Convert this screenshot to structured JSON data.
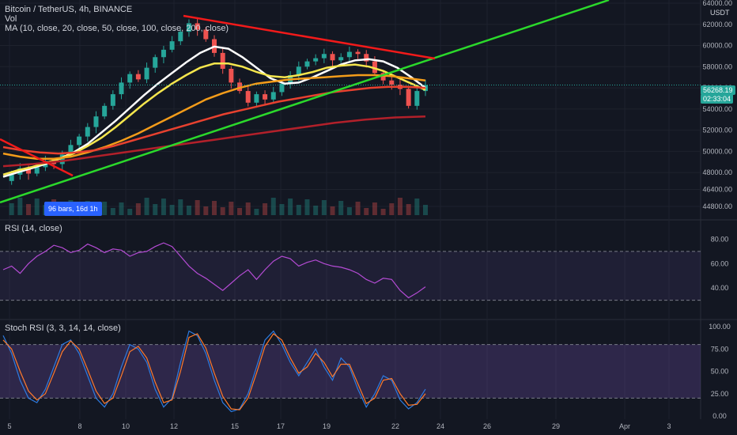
{
  "legend": {
    "title": "Bitcoin / TetherUS, 4h, BINANCE",
    "vol": "Vol",
    "ma": "MA (10, close, 20, close, 50, close, 100, close, 200, close)",
    "rsi": "RSI (14, close)",
    "stoch": "Stoch RSI (3, 3, 14, 14, close)"
  },
  "currency": "USDT",
  "current_price": "56268.19",
  "countdown": "02:33:04",
  "range_badge": "96 bars, 16d 1h",
  "colors": {
    "background": "#131722",
    "candle_up": "#26a69a",
    "candle_down": "#ef5350",
    "ma10": "#ffffff",
    "ma20": "#f5e64d",
    "ma50": "#f39c1a",
    "ma100": "#e8412f",
    "ma200": "#b2202a",
    "trend_green": "#2bd92b",
    "trend_red": "#f21a1a",
    "rsi_line": "#b44bd4",
    "stoch_k": "#2d7be0",
    "stoch_d": "#ff7a2b"
  },
  "chart_data": [
    {
      "type": "line",
      "title": "Bitcoin / TetherUS, 4h, BINANCE",
      "y_ticks": [
        "64000.00",
        "62000.00",
        "60000.00",
        "58000.00",
        "56000.00",
        "54000.00",
        "52000.00",
        "50000.00",
        "48000.00",
        "46400.00",
        "44800.00"
      ],
      "x_ticks": [
        "5",
        "8",
        "10",
        "12",
        "15",
        "17",
        "19",
        "22",
        "24",
        "26",
        "29",
        "Apr",
        "3"
      ],
      "price_series": [
        47200,
        47800,
        48400,
        47900,
        48500,
        49100,
        48800,
        49700,
        50600,
        51400,
        52300,
        53300,
        54300,
        55400,
        56500,
        57300,
        56800,
        57900,
        58900,
        59600,
        60400,
        61300,
        62100,
        61500,
        60600,
        59300,
        57800,
        56500,
        55700,
        54600,
        55400,
        54900,
        55600,
        56400,
        57200,
        58000,
        58500,
        58800,
        59200,
        58600,
        58900,
        59400,
        59200,
        58500,
        57400,
        56700,
        56300,
        55900,
        54300,
        55700,
        56268
      ],
      "ma_series": [
        {
          "name": "MA 10",
          "values": [
            47600,
            48000,
            48400,
            48800,
            49300,
            49900,
            50700,
            51800,
            52900,
            54100,
            55300,
            56400,
            57400,
            58400,
            59300,
            59900,
            59700,
            58900,
            57900,
            56900,
            56400,
            56500,
            57000,
            57600,
            58200,
            58600,
            58700,
            58500,
            57900,
            57000,
            56000
          ]
        },
        {
          "name": "MA 20",
          "values": [
            47800,
            48200,
            48500,
            48900,
            49300,
            49800,
            50500,
            51300,
            52300,
            53400,
            54500,
            55500,
            56400,
            57200,
            57900,
            58300,
            58300,
            58000,
            57500,
            57100,
            57000,
            57200,
            57500,
            57900,
            58100,
            58200,
            58000,
            57600,
            57000,
            56400,
            55800
          ]
        },
        {
          "name": "MA 50",
          "values": [
            49800,
            49500,
            49300,
            49300,
            49500,
            49900,
            50400,
            51000,
            51700,
            52500,
            53300,
            54100,
            54900,
            55500,
            56000,
            56400,
            56600,
            56800,
            56900,
            57000,
            57100,
            57200,
            57200,
            57100,
            56900,
            56700
          ]
        },
        {
          "name": "MA 100",
          "values": [
            50400,
            50100,
            49900,
            49800,
            49900,
            50100,
            50500,
            51000,
            51500,
            52000,
            52500,
            53000,
            53500,
            53900,
            54300,
            54700,
            55000,
            55300,
            55600,
            55800,
            56000,
            56100,
            56100,
            56000
          ]
        },
        {
          "name": "MA 200",
          "values": [
            48600,
            48800,
            49100,
            49500,
            49900,
            50300,
            50700,
            51100,
            51500,
            51900,
            52300,
            52700,
            53000,
            53200,
            53300
          ]
        }
      ],
      "rsi": {
        "levels": [
          70,
          30
        ],
        "ticks": [
          "80.00",
          "60.00",
          "40.00"
        ],
        "values": [
          55,
          58,
          52,
          60,
          66,
          70,
          75,
          73,
          69,
          71,
          76,
          73,
          69,
          72,
          71,
          66,
          69,
          70,
          74,
          77,
          74,
          66,
          58,
          52,
          48,
          43,
          38,
          44,
          50,
          55,
          47,
          55,
          62,
          66,
          64,
          58,
          61,
          63,
          60,
          58,
          57,
          55,
          52,
          47,
          44,
          48,
          47,
          38,
          32,
          36,
          41
        ]
      },
      "stoch_rsi": {
        "levels": [
          80,
          20
        ],
        "ticks": [
          "100.00",
          "75.00",
          "50.00",
          "25.00",
          "0.00"
        ],
        "k": [
          90,
          70,
          40,
          20,
          15,
          30,
          55,
          80,
          85,
          70,
          45,
          20,
          10,
          25,
          55,
          80,
          75,
          60,
          30,
          10,
          20,
          60,
          95,
          90,
          70,
          40,
          15,
          5,
          8,
          25,
          55,
          85,
          95,
          80,
          60,
          45,
          60,
          75,
          55,
          40,
          65,
          55,
          30,
          10,
          25,
          45,
          40,
          18,
          8,
          15,
          30
        ],
        "d": [
          85,
          75,
          50,
          28,
          18,
          25,
          48,
          72,
          84,
          75,
          52,
          28,
          14,
          20,
          45,
          72,
          78,
          65,
          38,
          15,
          18,
          50,
          88,
          92,
          76,
          48,
          22,
          8,
          7,
          20,
          48,
          78,
          92,
          85,
          65,
          48,
          55,
          70,
          60,
          44,
          58,
          58,
          36,
          14,
          20,
          40,
          42,
          25,
          12,
          13,
          25
        ]
      }
    }
  ]
}
